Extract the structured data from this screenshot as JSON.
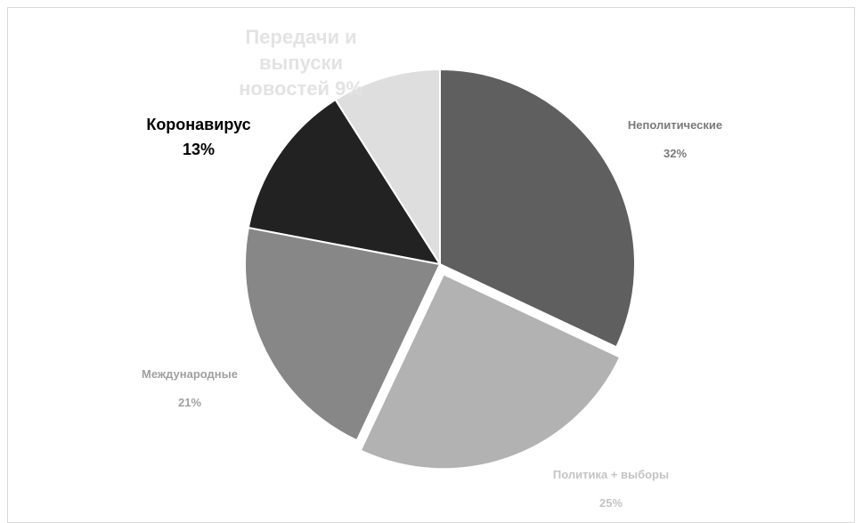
{
  "chart_data": {
    "type": "pie",
    "slices": [
      {
        "name": "Неполитические",
        "value": 32,
        "pct_label": "32%",
        "color": "#5f5f5f",
        "label_color": "#7a7a7a",
        "exploded": false
      },
      {
        "name": "Политика + выборы",
        "value": 25,
        "pct_label": "25%",
        "color": "#b2b2b2",
        "label_color": "#c4c4c4",
        "exploded": true
      },
      {
        "name": "Международные",
        "value": 21,
        "pct_label": "21%",
        "color": "#878787",
        "label_color": "#a0a0a0",
        "exploded": false
      },
      {
        "name": "Коронавирус",
        "value": 13,
        "pct_label": "13%",
        "color": "#222222",
        "label_color": "#000000",
        "exploded": false
      },
      {
        "name": "Передачи и выпуски новостей",
        "value": 9,
        "pct_label": "9%",
        "color": "#dedede",
        "label_color": "#e3e3e3",
        "exploded": false
      }
    ],
    "label_lines": [
      [
        "Неполитические",
        "32%"
      ],
      [
        "Политика + выборы",
        "25%"
      ],
      [
        "Международные",
        "21%"
      ],
      [
        "Коронавирус",
        "13%"
      ],
      [
        "Передачи и",
        "выпуски",
        "новостей 9%"
      ]
    ],
    "legend": "none"
  }
}
